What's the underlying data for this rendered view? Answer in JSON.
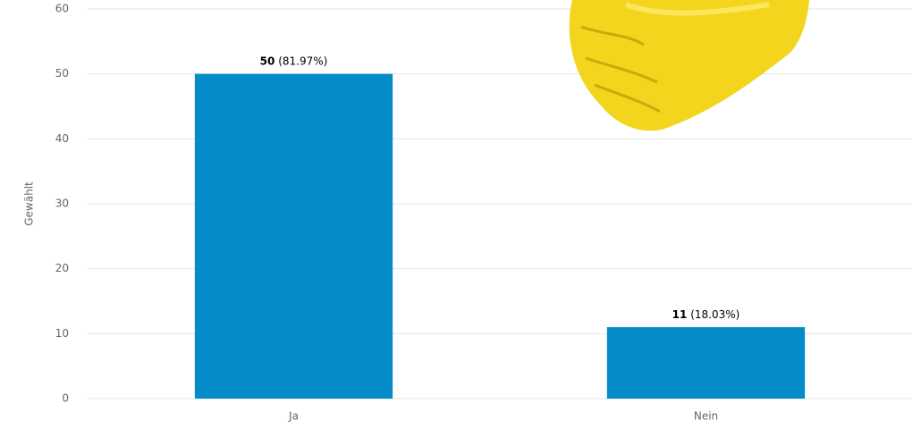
{
  "chart_data": {
    "type": "bar",
    "y_label": "Gewählt",
    "categories": [
      "Ja",
      "Nein"
    ],
    "values": [
      50,
      11
    ],
    "percent_labels": [
      "(81.97%)",
      "(18.03%)"
    ],
    "color": "#038cc8",
    "ylim": [
      0,
      60
    ],
    "yticks": [
      0,
      10,
      20,
      30,
      40,
      50,
      60
    ],
    "grid": true
  }
}
